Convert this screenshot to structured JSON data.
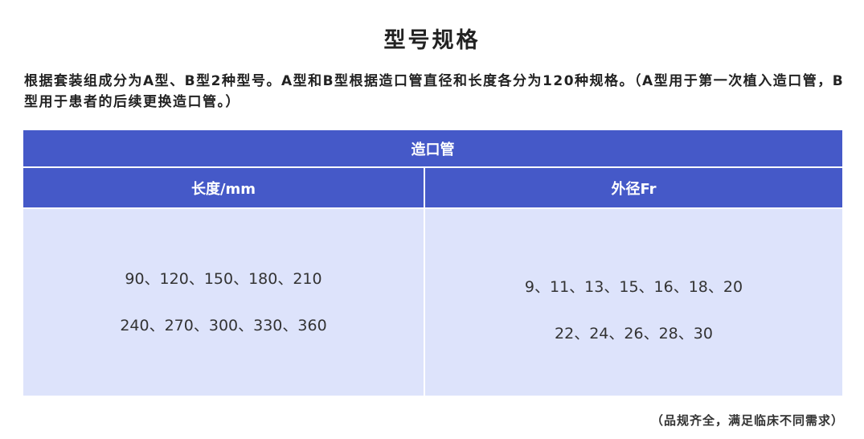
{
  "title": "型号规格",
  "intro": "根据套装组成分为A型、B型2种型号。A型和B型根据造口管直径和长度各分为120种规格。（A型用于第一次植入造口管，B型用于患者的后续更换造口管。）",
  "table": {
    "group_header": "造口管",
    "columns": [
      "长度/mm",
      "外径Fr"
    ],
    "length_rows": [
      "90、120、150、180、210",
      "240、270、300、330、360"
    ],
    "diameter_rows": [
      "9、11、13、15、16、18、20",
      "22、24、26、28、30"
    ]
  },
  "footnote": "（品规齐全，满足临床不同需求）",
  "colors": {
    "header": "#4559c8",
    "body": "#dde3fb"
  }
}
